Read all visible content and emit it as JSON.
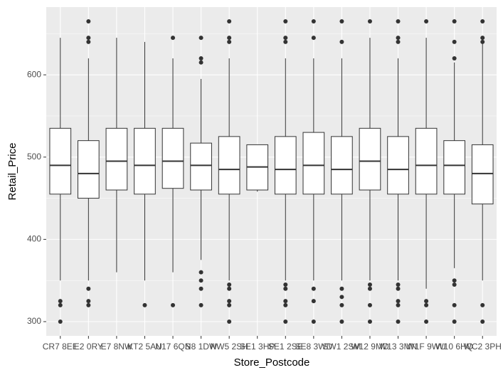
{
  "chart_data": {
    "type": "box",
    "x_label": "Store_Postcode",
    "y_label": "Retail_Price",
    "categories": [
      "CR7 8EE",
      "E2 0RY",
      "E7 8NW",
      "KT2 5AU",
      "N17 6QS",
      "N8 1DW",
      "NW5 2SH",
      "SE1 3HP",
      "SE1 2SE",
      "SE8 3WD",
      "SW1 2SM",
      "W12 9MD",
      "W13 3MN",
      "W1F 9WU",
      "W10 6HQ",
      "WC2 3PH"
    ],
    "boxes": [
      {
        "min": 350,
        "q1": 455,
        "median": 490,
        "q3": 535,
        "max": 645,
        "outliers": [
          325,
          320,
          300
        ]
      },
      {
        "min": 350,
        "q1": 450,
        "median": 480,
        "q3": 520,
        "max": 620,
        "outliers": [
          665,
          645,
          640,
          340,
          325,
          320
        ]
      },
      {
        "min": 360,
        "q1": 460,
        "median": 495,
        "q3": 535,
        "max": 645,
        "outliers": []
      },
      {
        "min": 350,
        "q1": 455,
        "median": 490,
        "q3": 535,
        "max": 640,
        "outliers": [
          320
        ]
      },
      {
        "min": 360,
        "q1": 462,
        "median": 495,
        "q3": 535,
        "max": 620,
        "outliers": [
          645,
          320
        ]
      },
      {
        "min": 375,
        "q1": 460,
        "median": 490,
        "q3": 517,
        "max": 595,
        "outliers": [
          645,
          620,
          615,
          360,
          350,
          340,
          320
        ]
      },
      {
        "min": 350,
        "q1": 455,
        "median": 485,
        "q3": 525,
        "max": 620,
        "outliers": [
          665,
          645,
          640,
          345,
          340,
          325,
          320,
          300
        ]
      },
      {
        "min": 458,
        "q1": 460,
        "median": 488,
        "q3": 515,
        "max": 515,
        "outliers": []
      },
      {
        "min": 350,
        "q1": 455,
        "median": 485,
        "q3": 525,
        "max": 620,
        "outliers": [
          665,
          645,
          640,
          345,
          340,
          325,
          320,
          300
        ]
      },
      {
        "min": 350,
        "q1": 455,
        "median": 490,
        "q3": 530,
        "max": 620,
        "outliers": [
          665,
          645,
          340,
          325,
          300
        ]
      },
      {
        "min": 350,
        "q1": 455,
        "median": 485,
        "q3": 525,
        "max": 620,
        "outliers": [
          665,
          640,
          340,
          330,
          320,
          300
        ]
      },
      {
        "min": 350,
        "q1": 460,
        "median": 495,
        "q3": 535,
        "max": 645,
        "outliers": [
          665,
          345,
          340,
          320,
          300
        ]
      },
      {
        "min": 350,
        "q1": 455,
        "median": 485,
        "q3": 525,
        "max": 620,
        "outliers": [
          665,
          645,
          640,
          345,
          340,
          325,
          320,
          300
        ]
      },
      {
        "min": 340,
        "q1": 455,
        "median": 490,
        "q3": 535,
        "max": 645,
        "outliers": [
          665,
          325,
          320,
          300
        ]
      },
      {
        "min": 365,
        "q1": 455,
        "median": 490,
        "q3": 520,
        "max": 615,
        "outliers": [
          665,
          640,
          620,
          350,
          345,
          320,
          300
        ]
      },
      {
        "min": 350,
        "q1": 443,
        "median": 480,
        "q3": 515,
        "max": 640,
        "outliers": [
          665,
          645,
          640,
          320,
          300
        ]
      }
    ],
    "ylim": [
      282.7,
      682.3
    ],
    "yticks": [
      300,
      400,
      500,
      600
    ],
    "y_minor_gridlines": [
      350,
      450,
      550,
      650
    ],
    "grid": true,
    "panel_color": "#ebebeb",
    "box_fill": "#ffffff",
    "line_color": "#333333"
  }
}
